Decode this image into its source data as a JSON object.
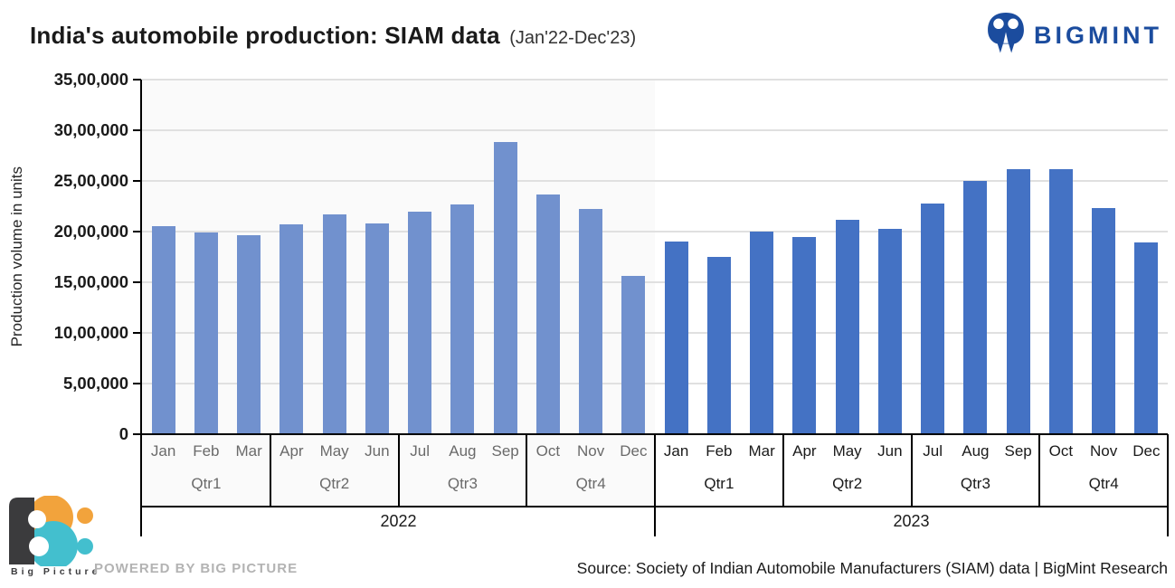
{
  "header": {
    "title_main": "India's automobile production: SIAM data",
    "title_period": "(Jan'22-Dec'23)",
    "brand_name": "BIGMINT"
  },
  "chart_data": {
    "type": "bar",
    "title": "India's automobile production: SIAM data (Jan'22-Dec'23)",
    "ylabel": "Production volume in units",
    "xlabel": "",
    "ylim": [
      0,
      3500000
    ],
    "ytick_interval": 500000,
    "ytick_labels_top_to_bottom": [
      "35,00,000",
      "30,00,000",
      "25,00,000",
      "20,00,000",
      "15,00,000",
      "10,00,000",
      "5,00,000",
      "0"
    ],
    "grid": true,
    "legend_position": "none",
    "categories": [
      "Jan",
      "Feb",
      "Mar",
      "Apr",
      "May",
      "Jun",
      "Jul",
      "Aug",
      "Sep",
      "Oct",
      "Nov",
      "Dec"
    ],
    "quarter_labels": [
      "Qtr1",
      "Qtr2",
      "Qtr3",
      "Qtr4"
    ],
    "series": [
      {
        "name": "2022",
        "values": [
          2050000,
          1990000,
          1960000,
          2070000,
          2170000,
          2080000,
          2200000,
          2270000,
          2880000,
          2370000,
          2220000,
          1560000
        ]
      },
      {
        "name": "2023",
        "values": [
          1900000,
          1750000,
          2000000,
          1950000,
          2120000,
          2030000,
          2280000,
          2500000,
          2620000,
          2620000,
          2230000,
          1890000
        ]
      }
    ]
  },
  "footer": {
    "logo_text": "Big Picture",
    "powered_by": "POWERED BY BIG PICTURE",
    "source": "Source: Society of Indian Automobile Manufacturers (SIAM) data | BigMint Research"
  },
  "colors": {
    "bar_2022": "#7191CE",
    "bar_2023": "#4472C4",
    "brand_blue": "#1B4C9E",
    "label_2022": "#6A6A6A",
    "label_2023": "#1A1A1A",
    "gridline": "#E0E0E0",
    "panel_2022_bg": "#FAFAFA",
    "logo_orange": "#F2A33C",
    "logo_teal": "#43BFCE",
    "logo_dark": "#3B3B3D"
  }
}
